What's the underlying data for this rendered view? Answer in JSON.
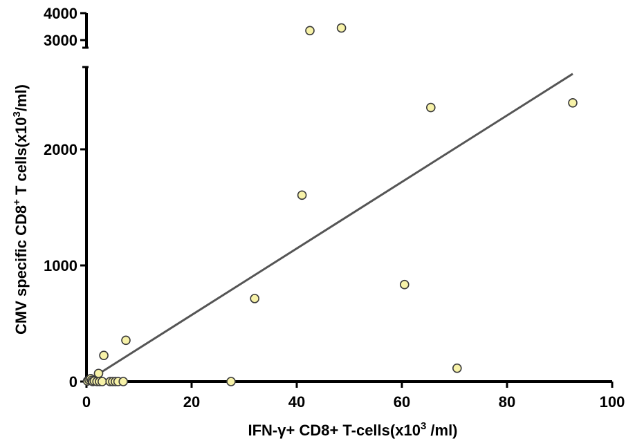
{
  "chart_data": {
    "type": "scatter",
    "xlabel": {
      "pre": "IFN-γ+ CD8+ T-cells(x10",
      "sup": "3",
      "post": " /ml)"
    },
    "ylabel": {
      "pre": "CMV specific CD8",
      "sup": "+",
      "mid": " T cells(x10",
      "sup2": "3",
      "post": "/ml)"
    },
    "x_ticks": [
      "0",
      "20",
      "40",
      "60",
      "80",
      "100"
    ],
    "y_ticks_lower": [
      "0",
      "1000",
      "2000"
    ],
    "y_ticks_upper": [
      "3000",
      "4000"
    ],
    "xlim": [
      0,
      100
    ],
    "ylim_lower": [
      0,
      2700
    ],
    "ylim_upper": [
      2900,
      4000
    ],
    "y_axis_break": true,
    "grid": false,
    "legend": "none",
    "marker_color": "#f7f2a8",
    "line_color": "#555555",
    "points": [
      {
        "x": 0.2,
        "y": 5
      },
      {
        "x": 0.5,
        "y": 15
      },
      {
        "x": 0.8,
        "y": 25
      },
      {
        "x": 1.0,
        "y": 10
      },
      {
        "x": 1.2,
        "y": 0
      },
      {
        "x": 1.5,
        "y": 5
      },
      {
        "x": 2.0,
        "y": 0
      },
      {
        "x": 2.3,
        "y": 70
      },
      {
        "x": 2.5,
        "y": 0
      },
      {
        "x": 3.0,
        "y": 0
      },
      {
        "x": 3.3,
        "y": 225
      },
      {
        "x": 4.5,
        "y": 0
      },
      {
        "x": 5.0,
        "y": 0
      },
      {
        "x": 5.5,
        "y": 0
      },
      {
        "x": 6.0,
        "y": 0
      },
      {
        "x": 7.0,
        "y": 0
      },
      {
        "x": 7.5,
        "y": 355
      },
      {
        "x": 27.5,
        "y": 0
      },
      {
        "x": 32.0,
        "y": 715
      },
      {
        "x": 41.0,
        "y": 1605
      },
      {
        "x": 42.5,
        "y": 3350
      },
      {
        "x": 48.5,
        "y": 3450
      },
      {
        "x": 60.5,
        "y": 835
      },
      {
        "x": 65.5,
        "y": 2360
      },
      {
        "x": 70.5,
        "y": 115
      },
      {
        "x": 92.5,
        "y": 2400
      }
    ],
    "fit_line": {
      "x": [
        0,
        92.5
      ],
      "y": [
        0,
        2650
      ]
    }
  }
}
